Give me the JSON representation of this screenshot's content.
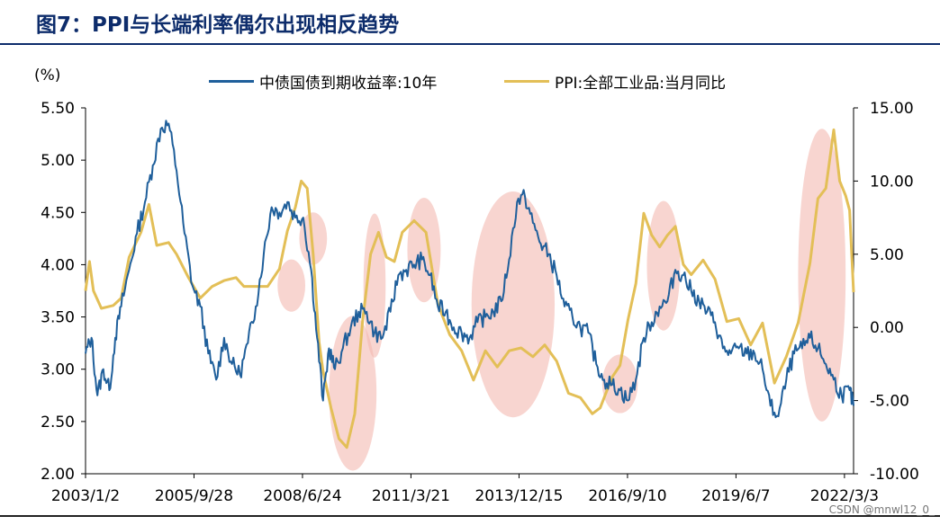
{
  "title": "图7：PPI与长端利率偶尔出现相反趋势",
  "watermark": "CSDN @mnwl12_0_",
  "colors": {
    "bond": "#1f5f9b",
    "ppi": "#e3bf57",
    "ellipse": "#f4b9b0",
    "title": "#0d2c6b"
  },
  "chart_data": {
    "type": "line",
    "title": "PPI与长端利率偶尔出现相反趋势",
    "left_axis": {
      "unit": "(%)",
      "range": [
        2.0,
        5.5
      ],
      "ticks": [
        "2.00",
        "2.50",
        "3.00",
        "3.50",
        "4.00",
        "4.50",
        "5.00",
        "5.50"
      ]
    },
    "right_axis": {
      "range": [
        -10,
        15
      ],
      "ticks": [
        "-10.00",
        "-5.00",
        "0.00",
        "5.00",
        "10.00",
        "15.00"
      ]
    },
    "x_range": [
      2003.0,
      2022.4
    ],
    "x_tick_labels": [
      "2003/1/2",
      "2005/9/28",
      "2008/6/24",
      "2011/3/21",
      "2013/12/15",
      "2016/9/10",
      "2019/6/7",
      "2022/3/3"
    ],
    "x_tick_positions": [
      2003.0,
      2005.74,
      2008.48,
      2011.22,
      2013.95,
      2016.69,
      2019.43,
      2022.17
    ],
    "legend_position": "top",
    "series": [
      {
        "name": "中债国债到期收益率:10年",
        "axis": "left",
        "x": [
          2003.0,
          2003.15,
          2003.3,
          2003.45,
          2003.6,
          2003.75,
          2003.9,
          2004.1,
          2004.3,
          2004.5,
          2004.7,
          2004.9,
          2005.1,
          2005.3,
          2005.5,
          2005.7,
          2005.9,
          2006.1,
          2006.3,
          2006.5,
          2006.7,
          2006.9,
          2007.1,
          2007.3,
          2007.5,
          2007.7,
          2007.9,
          2008.1,
          2008.3,
          2008.5,
          2008.7,
          2008.85,
          2009.0,
          2009.15,
          2009.3,
          2009.5,
          2009.7,
          2009.9,
          2010.1,
          2010.3,
          2010.5,
          2010.7,
          2010.9,
          2011.1,
          2011.3,
          2011.5,
          2011.7,
          2011.9,
          2012.1,
          2012.3,
          2012.5,
          2012.7,
          2012.9,
          2013.1,
          2013.3,
          2013.5,
          2013.7,
          2013.9,
          2014.1,
          2014.3,
          2014.5,
          2014.7,
          2014.9,
          2015.1,
          2015.3,
          2015.5,
          2015.7,
          2015.9,
          2016.1,
          2016.3,
          2016.5,
          2016.7,
          2016.9,
          2017.1,
          2017.3,
          2017.5,
          2017.7,
          2017.9,
          2018.1,
          2018.3,
          2018.5,
          2018.7,
          2018.9,
          2019.1,
          2019.3,
          2019.5,
          2019.7,
          2019.9,
          2020.1,
          2020.3,
          2020.5,
          2020.7,
          2020.9,
          2021.1,
          2021.3,
          2021.5,
          2021.7,
          2021.9,
          2022.1,
          2022.3,
          2022.4
        ],
        "values": [
          3.15,
          3.3,
          2.75,
          3.0,
          2.8,
          3.3,
          3.6,
          3.95,
          4.3,
          4.6,
          4.95,
          5.3,
          5.35,
          4.9,
          4.3,
          3.8,
          3.6,
          3.15,
          2.9,
          3.3,
          3.05,
          2.95,
          3.25,
          3.6,
          4.1,
          4.55,
          4.5,
          4.6,
          4.45,
          4.45,
          3.95,
          3.3,
          2.7,
          3.2,
          3.0,
          3.2,
          3.4,
          3.55,
          3.55,
          3.35,
          3.3,
          3.55,
          3.9,
          3.95,
          4.0,
          4.05,
          3.9,
          3.6,
          3.55,
          3.4,
          3.35,
          3.3,
          3.45,
          3.5,
          3.55,
          3.65,
          4.05,
          4.6,
          4.65,
          4.4,
          4.2,
          4.1,
          3.9,
          3.6,
          3.5,
          3.4,
          3.35,
          3.05,
          2.9,
          2.85,
          2.8,
          2.7,
          2.9,
          3.3,
          3.45,
          3.6,
          3.65,
          3.95,
          3.9,
          3.75,
          3.65,
          3.55,
          3.45,
          3.2,
          3.15,
          3.2,
          3.15,
          3.15,
          3.0,
          2.65,
          2.55,
          2.9,
          3.15,
          3.2,
          3.3,
          3.2,
          3.05,
          2.9,
          2.75,
          2.8,
          2.65
        ]
      },
      {
        "name": "PPI:全部工业品:当月同比",
        "axis": "right",
        "x": [
          2003.0,
          2003.1,
          2003.2,
          2003.4,
          2003.7,
          2003.9,
          2004.1,
          2004.4,
          2004.6,
          2004.8,
          2005.1,
          2005.3,
          2005.6,
          2005.9,
          2006.2,
          2006.5,
          2006.8,
          2007.0,
          2007.3,
          2007.6,
          2007.9,
          2008.1,
          2008.3,
          2008.45,
          2008.6,
          2008.75,
          2008.9,
          2009.0,
          2009.2,
          2009.4,
          2009.6,
          2009.8,
          2010.0,
          2010.2,
          2010.4,
          2010.6,
          2010.8,
          2011.0,
          2011.3,
          2011.6,
          2011.9,
          2012.2,
          2012.5,
          2012.8,
          2013.1,
          2013.4,
          2013.7,
          2014.0,
          2014.3,
          2014.6,
          2014.9,
          2015.2,
          2015.5,
          2015.8,
          2016.0,
          2016.3,
          2016.5,
          2016.7,
          2016.9,
          2017.1,
          2017.3,
          2017.5,
          2017.7,
          2017.9,
          2018.1,
          2018.3,
          2018.6,
          2018.9,
          2019.2,
          2019.5,
          2019.8,
          2020.1,
          2020.4,
          2020.7,
          2021.0,
          2021.3,
          2021.5,
          2021.7,
          2021.9,
          2022.05,
          2022.2,
          2022.3,
          2022.4
        ],
        "values": [
          2.5,
          4.5,
          2.5,
          1.3,
          1.5,
          2.0,
          4.8,
          6.5,
          8.4,
          5.6,
          5.8,
          5.0,
          3.4,
          2.0,
          2.8,
          3.2,
          3.4,
          2.8,
          2.8,
          2.8,
          4.0,
          6.6,
          8.2,
          10.0,
          9.5,
          5.0,
          -1.0,
          -3.0,
          -5.5,
          -7.6,
          -8.2,
          -5.9,
          0.5,
          5.0,
          6.5,
          4.8,
          4.5,
          6.5,
          7.3,
          6.5,
          1.6,
          -0.5,
          -1.6,
          -3.6,
          -1.6,
          -2.7,
          -1.6,
          -1.4,
          -2.0,
          -1.2,
          -2.3,
          -4.5,
          -4.8,
          -5.9,
          -5.5,
          -3.4,
          -2.6,
          0.5,
          3.0,
          7.8,
          6.3,
          5.5,
          6.3,
          6.9,
          4.3,
          3.6,
          4.6,
          3.3,
          0.4,
          0.6,
          -1.2,
          0.3,
          -3.8,
          -2.0,
          0.3,
          4.4,
          8.8,
          9.5,
          13.5,
          10.0,
          9.0,
          8.0,
          2.4
        ]
      }
    ],
    "highlight_ellipses": [
      {
        "x_center": 2008.2,
        "x_halfwidth": 0.35,
        "y_center_left": 3.8,
        "y_halfheight_left": 0.25
      },
      {
        "x_center": 2008.75,
        "x_halfwidth": 0.35,
        "y_center_left": 4.25,
        "y_halfheight_left": 0.25
      },
      {
        "x_center": 2009.75,
        "x_halfwidth": 0.6,
        "y_center_left": 2.77,
        "y_halfheight_left": 0.74
      },
      {
        "x_center": 2010.3,
        "x_halfwidth": 0.28,
        "y_center_left": 3.8,
        "y_halfheight_left": 0.69
      },
      {
        "x_center": 2011.55,
        "x_halfwidth": 0.42,
        "y_center_left": 4.14,
        "y_halfheight_left": 0.5
      },
      {
        "x_center": 2013.8,
        "x_halfwidth": 1.05,
        "y_center_left": 3.62,
        "y_halfheight_left": 1.08
      },
      {
        "x_center": 2016.5,
        "x_halfwidth": 0.45,
        "y_center_left": 2.86,
        "y_halfheight_left": 0.28
      },
      {
        "x_center": 2017.6,
        "x_halfwidth": 0.42,
        "y_center_left": 3.99,
        "y_halfheight_left": 0.62
      },
      {
        "x_center": 2021.6,
        "x_halfwidth": 0.6,
        "y_center_left": 3.9,
        "y_halfheight_left": 1.4
      }
    ]
  }
}
